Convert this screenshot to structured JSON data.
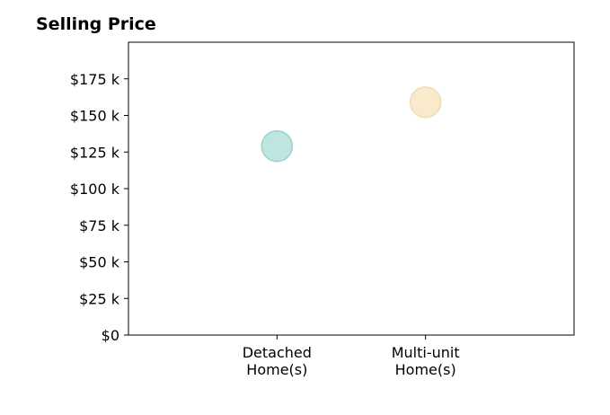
{
  "chart_data": {
    "type": "scatter",
    "title": "Selling Price",
    "xlabel": "",
    "ylabel": "",
    "categories": [
      "Detached Home(s)",
      "Multi-unit Home(s)"
    ],
    "category_lines": [
      [
        "Detached",
        "Home(s)"
      ],
      [
        "Multi-unit",
        "Home(s)"
      ]
    ],
    "values": [
      129000,
      159000
    ],
    "point_colors": [
      "#b3e0db",
      "#f8e6c6"
    ],
    "point_edge_colors": [
      "#9bd3cc",
      "#f2dcb4"
    ],
    "ylim": [
      0,
      200000
    ],
    "yticks": [
      0,
      25000,
      50000,
      75000,
      100000,
      125000,
      150000,
      175000
    ],
    "ytick_labels": [
      "$0",
      "$25 k",
      "$50 k",
      "$75 k",
      "$100 k",
      "$125 k",
      "$150 k",
      "$175 k"
    ],
    "grid": false,
    "legend": "none"
  }
}
